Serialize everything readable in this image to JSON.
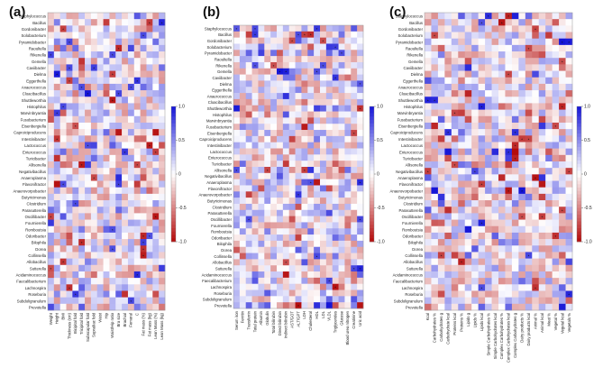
{
  "chart_data": [
    {
      "type": "heatmap",
      "panel": "(a)",
      "rows": [
        "Staphylococcus",
        "Bacillus",
        "Gordonibacter",
        "Solobacterium",
        "Pyramidobacter",
        "Raoultella",
        "Rikenella",
        "Gemella",
        "Caviibacter",
        "Dielma",
        "Eggerthella",
        "Anaerococcus",
        "Cloacibacillus",
        "Shuttleworthia",
        "Histophilus",
        "Marvinbryantia",
        "Fusobacterium",
        "Eisenbergiella",
        "Caproiciproducens",
        "Intestinibacter",
        "Lactococcus",
        "Enterococcus",
        "Turicibacter",
        "Allisonella",
        "Negativibacillus",
        "Anaeroplasma",
        "Flavonifractor",
        "Anaerovorpobacter",
        "Butyricimonas",
        "Clostridium",
        "Parasutterella",
        "Oscillibacter",
        "Fournierella",
        "Romboutsia",
        "Odoribacter",
        "Bilophila",
        "Dorea",
        "Collinsella",
        "Allobacillus",
        "Sutterella",
        "Acidaminococcus",
        "Faecalibacterium",
        "Lachnospira",
        "Roseburia",
        "Subdoligranulum",
        "Prevotella"
      ],
      "columns": [
        "Weight",
        "Height",
        "BMI",
        "Thickness (cm)",
        "Bicipital fold",
        "Tricipital fold",
        "Subscapular fold",
        "Suprailiac fold",
        "Waist",
        "Hip",
        "Waist/Hip ratio",
        "Bra size",
        "Brachial",
        "Femoral",
        "C",
        "Fat mass (%)",
        "Fat mass (kg)",
        "Lean Mass (%)",
        "Lean Mass (kg)"
      ],
      "colorbar": {
        "min": -1.0,
        "max": 1.0,
        "ticks": [
          "1.0",
          "0.5",
          "0",
          "-0.5",
          "-1.0"
        ]
      }
    },
    {
      "type": "heatmap",
      "panel": "(b)",
      "rows": [
        "Staphylococcus",
        "Bacillus",
        "Gordonibacter",
        "Solobacterium",
        "Pyramidobacter",
        "Raoultella",
        "Rikenella",
        "Gemella",
        "Caviibacter",
        "Dielma",
        "Eggerthella",
        "Anaerococcus",
        "Cloacibacillus",
        "Shuttleworthia",
        "Histophilus",
        "Marvinbryantia",
        "Fusobacterium",
        "Eisenbergiella",
        "Caproiciproducens",
        "Intestinibacter",
        "Lactococcus",
        "Enterococcus",
        "Turicibacter",
        "Allisonella",
        "Negativibacillus",
        "Anaeroplasma",
        "Flavonifractor",
        "Anaerovorpobacter",
        "Butyricimonas",
        "Clostridium",
        "Parasutterella",
        "Oscillibacter",
        "Fournierella",
        "Romboutsia",
        "Odoribacter",
        "Bilophila",
        "Dorea",
        "Collinsella",
        "Allobacillus",
        "Sutterella",
        "Acidaminococcus",
        "Faecalibacterium",
        "Lachnospira",
        "Roseburia",
        "Subdoligranulum",
        "Prevotella"
      ],
      "columns": [
        "Serum iron",
        "Ferritin",
        "Transferrin",
        "Total protein",
        "Albumin",
        "Globulin",
        "Total bilirubin",
        "Direct bilirubin",
        "Indirect bilirubin",
        "AST/GOT",
        "ALT/GPT",
        "LDH",
        "Cholesterol",
        "HDL",
        "LDL",
        "VLDL",
        "Triglycerides",
        "Glucose",
        "Blood urea nitrogen",
        "Creatinine",
        "Uric acid"
      ],
      "colorbar": {
        "min": -1.0,
        "max": 1.0,
        "ticks": [
          "1.0",
          "0.5",
          "0",
          "-0.5",
          "-1.0"
        ]
      }
    },
    {
      "type": "heatmap",
      "panel": "(c)",
      "rows": [
        "Staphylococcus",
        "Bacillus",
        "Gordonibacter",
        "Solobacterium",
        "Pyramidobacter",
        "Raoultella",
        "Rikenella",
        "Gemella",
        "Caviibacter",
        "Dielma",
        "Eggerthella",
        "Anaerococcus",
        "Cloacibacillus",
        "Shuttleworthia",
        "Histophilus",
        "Marvinbryantia",
        "Fusobacterium",
        "Eisenbergiella",
        "Caproiciproducens",
        "Intestinibacter",
        "Lactococcus",
        "Enterococcus",
        "Turicibacter",
        "Allisonella",
        "Negativibacillus",
        "Anaeroplasma",
        "Flavonifractor",
        "Anaerovorpobacter",
        "Butyricimonas",
        "Clostridium",
        "Parasutterella",
        "Oscillibacter",
        "Fournierella",
        "Romboutsia",
        "Odoribacter",
        "Bilophila",
        "Dorea",
        "Collinsella",
        "Allobacillus",
        "Sutterella",
        "Acidaminococcus",
        "Faecalibacterium",
        "Lachnospira",
        "Roseburia",
        "Subdoligranulum",
        "Prevotella"
      ],
      "columns": [
        "Kcal",
        "Carbohydrates %",
        "Carbohydrates g",
        "Carbohydrate kcal",
        "Proteins kcal",
        "Proteins %",
        "Lipids g",
        "Lipids %",
        "Lipids kcal",
        "Simple Carbohydrates %",
        "Simple Carbohydrates kcal",
        "Complex Carbohydrates %",
        "Complex Carbohydrates kcal",
        "Complex Carbohydrates g",
        "Dairy products %",
        "Dairy products kcal",
        "Animal %",
        "Animal kcal",
        "Meat %",
        "Vegetal %",
        "Vegetal kcal",
        "Vegetals %"
      ],
      "colorbar": {
        "min": -1.0,
        "max": 1.0,
        "ticks": [
          "1.0",
          "0.5",
          "0",
          "-0.5",
          "-1.0"
        ]
      }
    }
  ]
}
